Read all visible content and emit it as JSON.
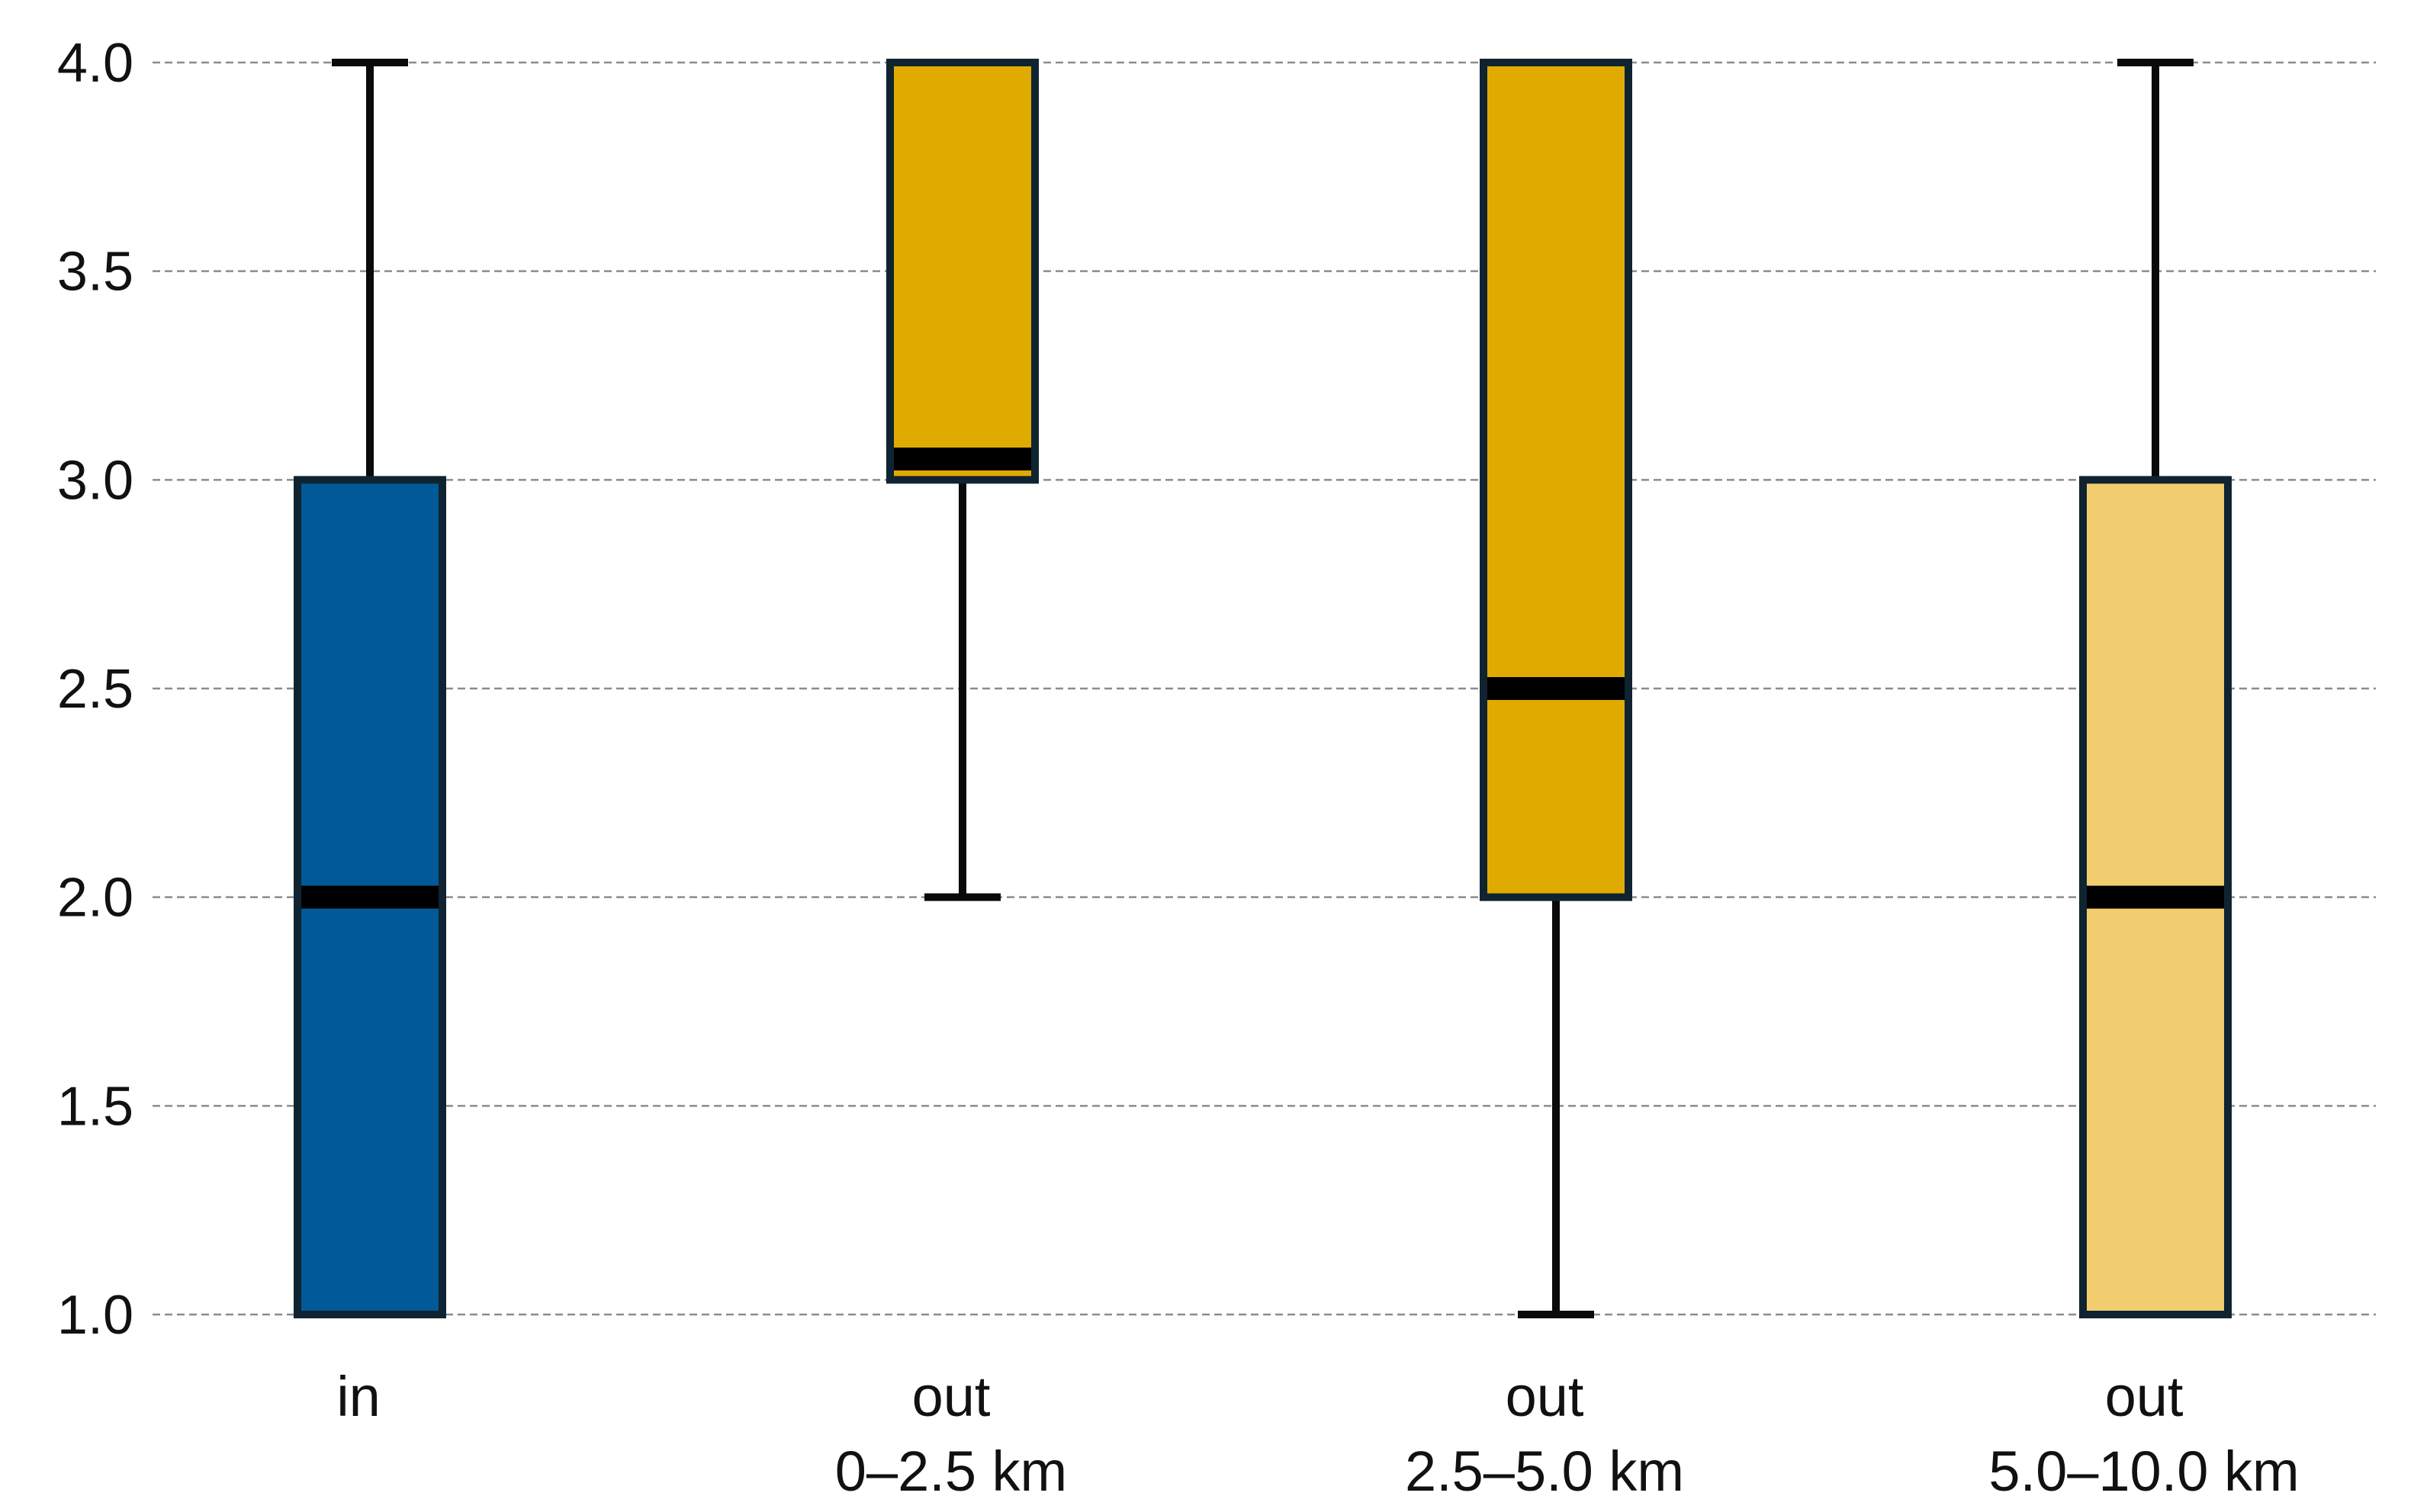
{
  "chart_data": {
    "type": "boxplot",
    "title": "",
    "xlabel": "",
    "ylabel": "",
    "ylim": [
      1.0,
      4.0
    ],
    "yticks": [
      "1.0",
      "1.5",
      "2.0",
      "2.5",
      "3.0",
      "3.5",
      "4.0"
    ],
    "grid": "horizontal dashed",
    "categories": [
      {
        "label_lines": [
          "in"
        ],
        "whisker_low": 1.0,
        "q1": 1.0,
        "median": 2.0,
        "q3": 3.0,
        "whisker_high": 4.0,
        "color": "#015a97"
      },
      {
        "label_lines": [
          "out",
          "0–2.5 km"
        ],
        "whisker_low": 2.0,
        "q1": 3.0,
        "median": 3.05,
        "q3": 4.0,
        "whisker_high": 4.0,
        "color": "#e0ab00"
      },
      {
        "label_lines": [
          "out",
          "2.5–5.0 km"
        ],
        "whisker_low": 1.0,
        "q1": 2.0,
        "median": 2.5,
        "q3": 4.0,
        "whisker_high": 4.0,
        "color": "#e0ab00"
      },
      {
        "label_lines": [
          "out",
          "5.0–10.0 km"
        ],
        "whisker_low": 1.0,
        "q1": 1.0,
        "median": 2.0,
        "q3": 3.0,
        "whisker_high": 4.0,
        "color": "#f2cd6f"
      }
    ]
  }
}
